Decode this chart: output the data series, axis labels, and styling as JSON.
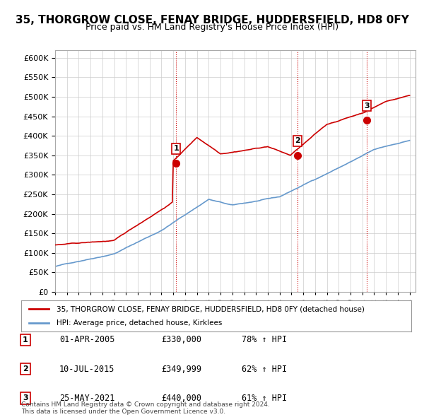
{
  "title": "35, THORGROW CLOSE, FENAY BRIDGE, HUDDERSFIELD, HD8 0FY",
  "subtitle": "Price paid vs. HM Land Registry's House Price Index (HPI)",
  "ylabel": "",
  "ylim": [
    0,
    620000
  ],
  "yticks": [
    0,
    50000,
    100000,
    150000,
    200000,
    250000,
    300000,
    350000,
    400000,
    450000,
    500000,
    550000,
    600000
  ],
  "xlim_start": 1995.0,
  "xlim_end": 2025.5,
  "red_color": "#cc0000",
  "blue_color": "#6699cc",
  "sale_dates": [
    2005.25,
    2015.53,
    2021.4
  ],
  "sale_prices": [
    330000,
    349999,
    440000
  ],
  "sale_labels": [
    "1",
    "2",
    "3"
  ],
  "legend_red": "35, THORGROW CLOSE, FENAY BRIDGE, HUDDERSFIELD, HD8 0FY (detached house)",
  "legend_blue": "HPI: Average price, detached house, Kirklees",
  "table_rows": [
    [
      "1",
      "01-APR-2005",
      "£330,000",
      "78% ↑ HPI"
    ],
    [
      "2",
      "10-JUL-2015",
      "£349,999",
      "62% ↑ HPI"
    ],
    [
      "3",
      "25-MAY-2021",
      "£440,000",
      "61% ↑ HPI"
    ]
  ],
  "footer": "Contains HM Land Registry data © Crown copyright and database right 2024.\nThis data is licensed under the Open Government Licence v3.0.",
  "background_color": "#ffffff",
  "grid_color": "#cccccc",
  "title_fontsize": 11,
  "subtitle_fontsize": 9,
  "tick_fontsize": 8
}
